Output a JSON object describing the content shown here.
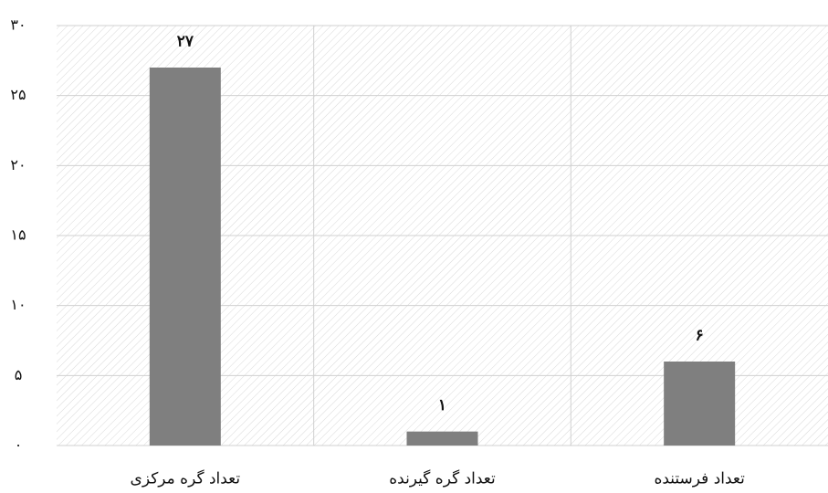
{
  "chart_data": {
    "type": "bar",
    "categories": [
      "تعداد گره مرکزی",
      "تعداد گره گیرنده",
      "تعداد فرستنده"
    ],
    "values": [
      27,
      1,
      6
    ],
    "value_labels": [
      "۲۷",
      "۱",
      "۶"
    ],
    "color": "#7f7f7f",
    "ylim": [
      0,
      30
    ],
    "yticks": [
      {
        "value": 0,
        "label": "۰"
      },
      {
        "value": 5,
        "label": "۵"
      },
      {
        "value": 10,
        "label": "۱۰"
      },
      {
        "value": 15,
        "label": "۱۵"
      },
      {
        "value": 20,
        "label": "۲۰"
      },
      {
        "value": 25,
        "label": "۲۵"
      },
      {
        "value": 30,
        "label": "۳۰"
      }
    ],
    "grid": true
  }
}
